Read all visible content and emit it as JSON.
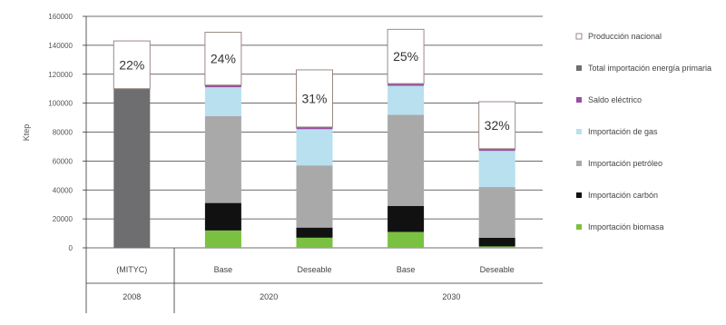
{
  "chart_data": {
    "type": "bar",
    "stacked": true,
    "ylabel": "Ktep",
    "ylim": [
      0,
      160000
    ],
    "yticks": [
      "0",
      "20000",
      "40000",
      "60000",
      "80000",
      "100000",
      "120000",
      "140000",
      "160000"
    ],
    "grid": true,
    "legend_position": "right",
    "categories": [
      "(MITYC)",
      "Base",
      "Deseable",
      "Base",
      "Deseable"
    ],
    "groups": [
      {
        "label": "2008",
        "categories": [
          0
        ]
      },
      {
        "label": "2020",
        "categories": [
          1,
          2
        ]
      },
      {
        "label": "2030",
        "categories": [
          3,
          4
        ]
      }
    ],
    "series": [
      {
        "name": "Importación biomasa",
        "color": "#7ac142",
        "values": [
          0,
          12000,
          7000,
          11000,
          1000
        ]
      },
      {
        "name": "Importación carbón",
        "color": "#111111",
        "values": [
          0,
          19000,
          7000,
          18000,
          6000
        ]
      },
      {
        "name": "Importación petróleo",
        "color": "#a9a9a9",
        "values": [
          0,
          60000,
          43000,
          63000,
          35000
        ]
      },
      {
        "name": "Importación de gas",
        "color": "#b8e0ef",
        "values": [
          0,
          20000,
          25000,
          20000,
          25000
        ]
      },
      {
        "name": "Saldo eléctrico",
        "color": "#9b4ea0",
        "values": [
          0,
          1500,
          1500,
          1500,
          1500
        ]
      },
      {
        "name": "Total importación energía primaria",
        "color": "#6e6e70",
        "values": [
          110000,
          0,
          0,
          0,
          0
        ]
      },
      {
        "name": "Producción nacional",
        "color": "#ffffff",
        "values": [
          33000,
          36500,
          39500,
          37500,
          32500
        ]
      }
    ],
    "annotations": [
      "22%",
      "24%",
      "31%",
      "25%",
      "32%"
    ]
  }
}
